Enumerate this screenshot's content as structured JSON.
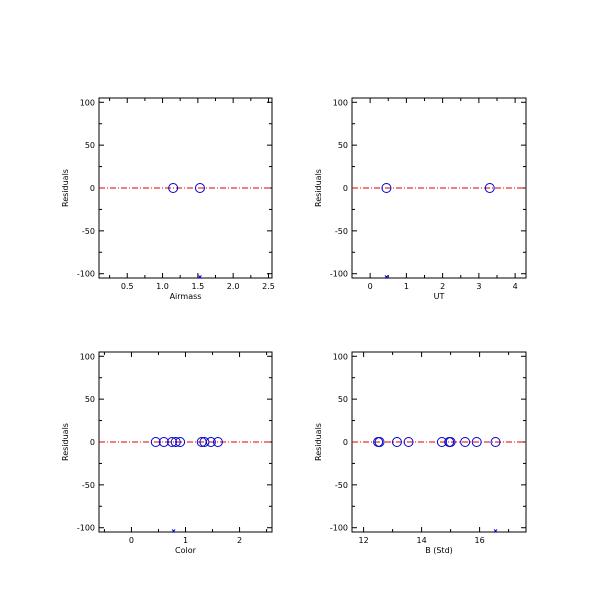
{
  "chart_data": [
    {
      "type": "scatter",
      "xlabel": "Airmass",
      "ylabel": "Residuals",
      "xlim": [
        0.1,
        2.55
      ],
      "ylim": [
        -105,
        105
      ],
      "xticks": [
        0.5,
        1.0,
        1.5,
        2.0,
        2.5
      ],
      "xtick_labels": [
        "0.5",
        "1.0",
        "1.5",
        "2.0",
        "2.5"
      ],
      "yticks": [
        -100,
        -50,
        0,
        50,
        100
      ],
      "ytick_labels": [
        "-100",
        "-50",
        "0",
        "50",
        "100"
      ],
      "zero_line_color": "#e00000",
      "marker_color": "#0000cc",
      "points": [
        {
          "x": 1.15,
          "y": 0
        },
        {
          "x": 1.53,
          "y": 0
        }
      ],
      "offscale_x": [
        1.53
      ]
    },
    {
      "type": "scatter",
      "xlabel": "UT",
      "ylabel": "Residuals",
      "xlim": [
        -0.5,
        4.3
      ],
      "ylim": [
        -105,
        105
      ],
      "xticks": [
        0,
        1,
        2,
        3,
        4
      ],
      "xtick_labels": [
        "0",
        "1",
        "2",
        "3",
        "4"
      ],
      "yticks": [
        -100,
        -50,
        0,
        50,
        100
      ],
      "ytick_labels": [
        "-100",
        "-50",
        "0",
        "50",
        "100"
      ],
      "zero_line_color": "#e00000",
      "marker_color": "#0000cc",
      "points": [
        {
          "x": 0.45,
          "y": 0
        },
        {
          "x": 3.3,
          "y": 0
        }
      ],
      "offscale_x": [
        0.45
      ]
    },
    {
      "type": "scatter",
      "xlabel": "Color",
      "ylabel": "Residuals",
      "xlim": [
        -0.6,
        2.6
      ],
      "ylim": [
        -105,
        105
      ],
      "xticks": [
        0,
        1,
        2
      ],
      "xtick_labels": [
        "0",
        "1",
        "2"
      ],
      "yticks": [
        -100,
        -50,
        0,
        50,
        100
      ],
      "ytick_labels": [
        "-100",
        "-50",
        "0",
        "50",
        "100"
      ],
      "zero_line_color": "#e00000",
      "marker_color": "#0000cc",
      "points": [
        {
          "x": 0.45,
          "y": 0
        },
        {
          "x": 0.6,
          "y": 0
        },
        {
          "x": 0.75,
          "y": 0
        },
        {
          "x": 0.82,
          "y": 0
        },
        {
          "x": 0.9,
          "y": 0
        },
        {
          "x": 1.3,
          "y": 0
        },
        {
          "x": 1.35,
          "y": 0
        },
        {
          "x": 1.47,
          "y": 0
        },
        {
          "x": 1.6,
          "y": 0
        }
      ],
      "offscale_x": [
        0.78
      ]
    },
    {
      "type": "scatter",
      "xlabel": "B (Std)",
      "ylabel": "Residuals",
      "xlim": [
        11.6,
        17.6
      ],
      "ylim": [
        -105,
        105
      ],
      "xticks": [
        12,
        14,
        16
      ],
      "xtick_labels": [
        "12",
        "14",
        "16"
      ],
      "yticks": [
        -100,
        -50,
        0,
        50,
        100
      ],
      "ytick_labels": [
        "-100",
        "-50",
        "0",
        "50",
        "100"
      ],
      "zero_line_color": "#e00000",
      "marker_color": "#0000cc",
      "points": [
        {
          "x": 12.5,
          "y": 0
        },
        {
          "x": 12.55,
          "y": 0
        },
        {
          "x": 13.15,
          "y": 0
        },
        {
          "x": 13.55,
          "y": 0
        },
        {
          "x": 14.7,
          "y": 0
        },
        {
          "x": 14.95,
          "y": 0
        },
        {
          "x": 15.0,
          "y": 0
        },
        {
          "x": 15.5,
          "y": 0
        },
        {
          "x": 15.9,
          "y": 0
        },
        {
          "x": 16.55,
          "y": 0
        }
      ],
      "offscale_x": [
        16.55
      ]
    }
  ]
}
